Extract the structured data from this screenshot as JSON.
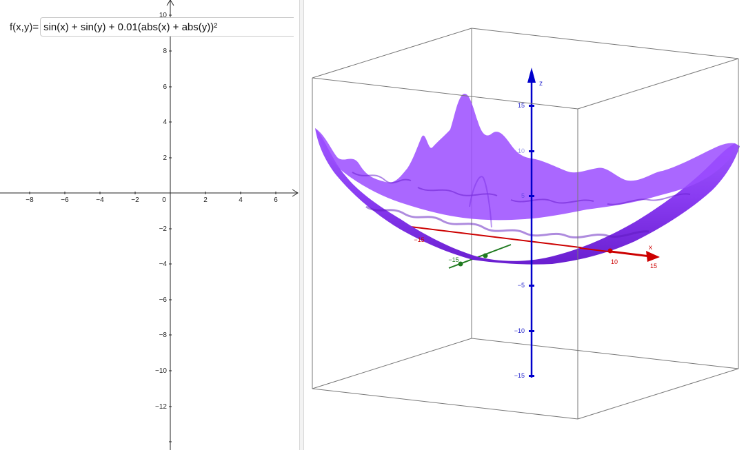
{
  "app": {
    "input_bar": {
      "label": "f(x,y)=",
      "expression": "sin(x) + sin(y) + 0.01(abs(x) + abs(y))²"
    }
  },
  "graphics_2d": {
    "x_ticks": [
      "−8",
      "−6",
      "−4",
      "−2",
      "0",
      "2",
      "4",
      "6"
    ],
    "y_ticks": [
      "10",
      "8",
      "6",
      "4",
      "2",
      "−2",
      "−4",
      "−6",
      "−8",
      "−10",
      "−12"
    ]
  },
  "graphics_3d": {
    "axis_labels": {
      "x": "x",
      "z": "z"
    },
    "x_ticks": [
      "−15",
      "10",
      "15"
    ],
    "y_ticks": [
      "−15"
    ],
    "z_ticks": [
      "15",
      "10",
      "5",
      "−5",
      "−10",
      "−15"
    ],
    "colors": {
      "surface": "#8a3cf2",
      "x_axis": "#cc0000",
      "y_axis": "#1f7a1f",
      "z_axis": "#0000cc"
    }
  }
}
